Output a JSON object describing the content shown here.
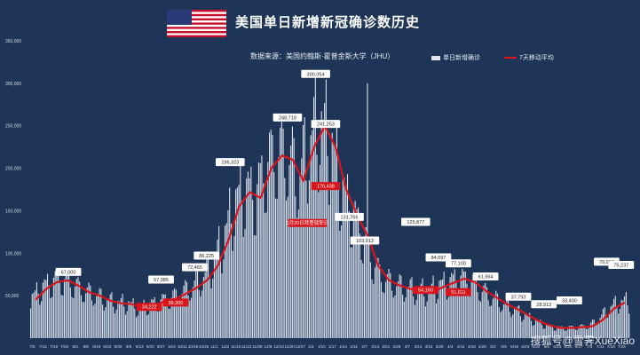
{
  "header": {
    "title": "美国单日新增新冠确诊数历史",
    "source": "数据来源：美国约翰斯·霍普金斯大学（JHU）",
    "legend_bars": "单日新增确诊",
    "legend_line": "7天移动平均",
    "watermark": "搜狐号@雪霁XueXiao"
  },
  "colors": {
    "background": "#1f3557",
    "bars": "#dfe6f0",
    "line": "#d9141b",
    "label_box": "#ffffff",
    "red_label": "#d9141b"
  },
  "chart_data": {
    "type": "bar",
    "ylim": [
      0,
      350000
    ],
    "yticks": [
      "50,000",
      "100,000",
      "150,000",
      "200,000",
      "250,000",
      "300,000",
      "350,000"
    ],
    "xticks": [
      "7/5",
      "7/12",
      "7/19",
      "7/26",
      "8/2",
      "8/9",
      "8/16",
      "8/23",
      "8/30",
      "9/6",
      "9/13",
      "9/20",
      "9/27",
      "10/4",
      "10/11",
      "10/18",
      "10/25",
      "11/1",
      "11/8",
      "11/15",
      "11/22",
      "11/29",
      "12/6",
      "12/13",
      "12/20",
      "12/27",
      "1/3",
      "1/10",
      "1/17",
      "1/24",
      "1/31",
      "2/7",
      "2/14",
      "2/21",
      "2/28",
      "3/7",
      "3/14",
      "3/21",
      "3/28",
      "4/4",
      "4/11",
      "4/18",
      "4/25",
      "5/2",
      "5/9",
      "5/16",
      "5/23",
      "5/30",
      "6/6",
      "6/13",
      "6/20",
      "6/27",
      "7/4",
      "7/11",
      "7/18",
      "7/25"
    ],
    "weekly_average": [
      45000,
      58000,
      66000,
      68000,
      62000,
      54000,
      50000,
      44000,
      41000,
      40000,
      35000,
      38000,
      43000,
      46000,
      52000,
      59000,
      68000,
      85000,
      115000,
      155000,
      172000,
      165000,
      200000,
      215000,
      210000,
      185000,
      225000,
      250000,
      225000,
      175000,
      145000,
      120000,
      85000,
      68000,
      62000,
      58000,
      55000,
      54000,
      60000,
      65000,
      70000,
      66000,
      56000,
      48000,
      40000,
      34000,
      27000,
      20000,
      15000,
      12000,
      12000,
      13000,
      14000,
      22000,
      35000,
      42000
    ],
    "daily_peak": 300054,
    "annotations": [
      {
        "week": 4.2,
        "value": 67000,
        "text": "67,000"
      },
      {
        "week": 14.4,
        "value": 57985,
        "text": "57,985"
      },
      {
        "week": 18.1,
        "value": 72465,
        "text": "72,465"
      },
      {
        "week": 19.4,
        "value": 86225,
        "text": "86,225"
      },
      {
        "week": 22.0,
        "value": 196323,
        "text": "196,323"
      },
      {
        "week": 28.3,
        "value": 248719,
        "text": "248,719"
      },
      {
        "week": 31.4,
        "value": 300054,
        "text": "300,054"
      },
      {
        "week": 32.5,
        "value": 241253,
        "text": "241,253"
      },
      {
        "week": 35.1,
        "value": 131766,
        "text": "131,766"
      },
      {
        "week": 36.8,
        "value": 103913,
        "text": "103,913"
      },
      {
        "week": 42.4,
        "value": 125877,
        "text": "125,877"
      },
      {
        "week": 44.9,
        "value": 84097,
        "text": "84,097"
      },
      {
        "week": 47.1,
        "value": 77100,
        "text": "77,100"
      },
      {
        "week": 50.1,
        "value": 61664,
        "text": "61,664"
      },
      {
        "week": 53.7,
        "value": 37793,
        "text": "37,793"
      },
      {
        "week": 56.5,
        "value": 28913,
        "text": "28,913"
      },
      {
        "week": 59.3,
        "value": 33400,
        "text": "33,400"
      },
      {
        "week": 63.4,
        "value": 79007,
        "text": "79,007"
      },
      {
        "week": 65.0,
        "value": 75237,
        "text": "75,237"
      }
    ],
    "red_annotations": [
      {
        "week": 13.1,
        "value": 34222,
        "text": "34,222"
      },
      {
        "week": 16.0,
        "value": 39300,
        "text": "39,300"
      },
      {
        "week": 32.5,
        "value": 176438,
        "text": "176,438"
      },
      {
        "week": 43.5,
        "value": 54160,
        "text": "54,160"
      },
      {
        "week": 47.1,
        "value": 51611,
        "text": "51,611"
      },
      {
        "week": 30.5,
        "value": 133000,
        "text": "1月20日拜登就职日"
      }
    ]
  }
}
